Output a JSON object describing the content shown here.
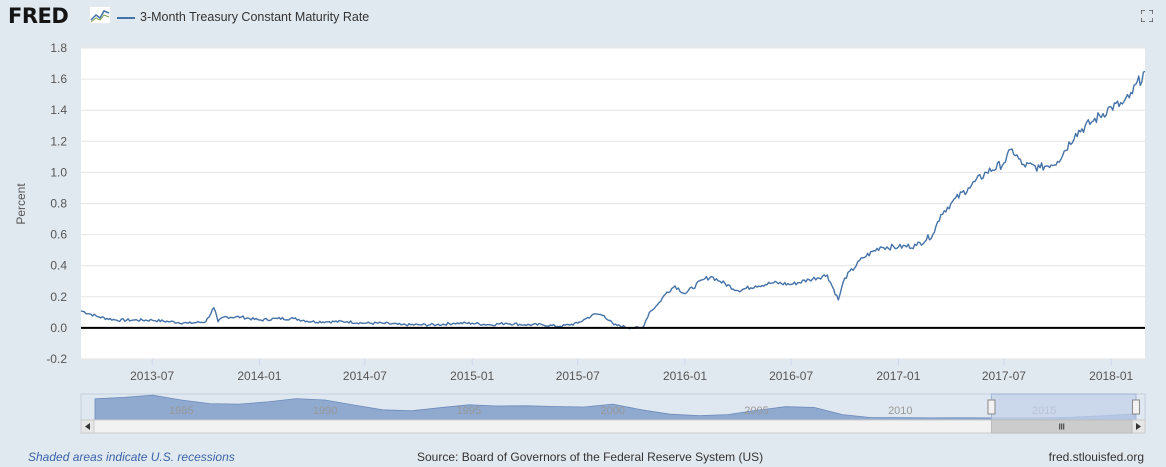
{
  "header": {
    "logo_text": "FRED",
    "legend_label": "3-Month Treasury Constant Maturity Rate"
  },
  "icons": {
    "logo": "fred-chart-logo-icon",
    "fullscreen": "fullscreen-icon",
    "scroll_left": "arrow-left-icon",
    "scroll_right": "arrow-right-icon",
    "scroll_grip": "grip-icon"
  },
  "colors": {
    "series": "#4572a7",
    "plot_bg": "#ffffff",
    "page_bg": "#e1e9f0",
    "navigator_fill": "#8fa9cf",
    "navigator_window": "#c4d2ea"
  },
  "chart_data": {
    "type": "line",
    "ylabel": "Percent",
    "ylim": [
      -0.2,
      1.8
    ],
    "yticks": [
      "-0.2",
      "0.0",
      "0.2",
      "0.4",
      "0.6",
      "0.8",
      "1.0",
      "1.2",
      "1.4",
      "1.6",
      "1.8"
    ],
    "xlim": [
      "2013-03-01",
      "2018-02-28"
    ],
    "xticks": [
      "2013-07",
      "2014-01",
      "2014-07",
      "2015-01",
      "2015-07",
      "2016-01",
      "2016-07",
      "2017-01",
      "2017-07",
      "2018-01"
    ],
    "zero_line": true,
    "grid": "horizontal",
    "series": [
      {
        "name": "3-Month Treasury Constant Maturity Rate",
        "points": [
          [
            "2013-03-01",
            0.11
          ],
          [
            "2013-04-01",
            0.07
          ],
          [
            "2013-05-01",
            0.05
          ],
          [
            "2013-06-01",
            0.05
          ],
          [
            "2013-07-01",
            0.05
          ],
          [
            "2013-08-01",
            0.04
          ],
          [
            "2013-09-01",
            0.03
          ],
          [
            "2013-10-01",
            0.04
          ],
          [
            "2013-10-15",
            0.13
          ],
          [
            "2013-10-22",
            0.04
          ],
          [
            "2013-11-01",
            0.07
          ],
          [
            "2013-12-01",
            0.07
          ],
          [
            "2014-01-01",
            0.05
          ],
          [
            "2014-02-01",
            0.06
          ],
          [
            "2014-03-01",
            0.06
          ],
          [
            "2014-04-01",
            0.04
          ],
          [
            "2014-05-01",
            0.04
          ],
          [
            "2014-06-01",
            0.04
          ],
          [
            "2014-07-01",
            0.03
          ],
          [
            "2014-08-01",
            0.03
          ],
          [
            "2014-09-01",
            0.02
          ],
          [
            "2014-10-01",
            0.02
          ],
          [
            "2014-11-01",
            0.02
          ],
          [
            "2014-12-01",
            0.03
          ],
          [
            "2015-01-01",
            0.03
          ],
          [
            "2015-02-01",
            0.02
          ],
          [
            "2015-03-01",
            0.03
          ],
          [
            "2015-04-01",
            0.02
          ],
          [
            "2015-05-01",
            0.02
          ],
          [
            "2015-06-01",
            0.01
          ],
          [
            "2015-07-01",
            0.03
          ],
          [
            "2015-07-15",
            0.06
          ],
          [
            "2015-08-01",
            0.09
          ],
          [
            "2015-08-15",
            0.08
          ],
          [
            "2015-09-01",
            0.02
          ],
          [
            "2015-10-01",
            0.0
          ],
          [
            "2015-10-20",
            0.0
          ],
          [
            "2015-11-01",
            0.1
          ],
          [
            "2015-11-15",
            0.15
          ],
          [
            "2015-12-01",
            0.23
          ],
          [
            "2015-12-15",
            0.27
          ],
          [
            "2016-01-01",
            0.22
          ],
          [
            "2016-02-01",
            0.31
          ],
          [
            "2016-02-15",
            0.33
          ],
          [
            "2016-03-01",
            0.3
          ],
          [
            "2016-04-01",
            0.24
          ],
          [
            "2016-05-01",
            0.27
          ],
          [
            "2016-06-01",
            0.29
          ],
          [
            "2016-07-01",
            0.28
          ],
          [
            "2016-08-01",
            0.31
          ],
          [
            "2016-09-01",
            0.34
          ],
          [
            "2016-09-20",
            0.18
          ],
          [
            "2016-10-01",
            0.32
          ],
          [
            "2016-11-01",
            0.45
          ],
          [
            "2016-12-01",
            0.52
          ],
          [
            "2017-01-01",
            0.52
          ],
          [
            "2017-02-01",
            0.53
          ],
          [
            "2017-03-01",
            0.6
          ],
          [
            "2017-03-15",
            0.73
          ],
          [
            "2017-04-01",
            0.8
          ],
          [
            "2017-05-01",
            0.9
          ],
          [
            "2017-06-01",
            1.0
          ],
          [
            "2017-07-01",
            1.06
          ],
          [
            "2017-07-15",
            1.15
          ],
          [
            "2017-08-01",
            1.05
          ],
          [
            "2017-09-01",
            1.03
          ],
          [
            "2017-10-01",
            1.07
          ],
          [
            "2017-11-01",
            1.25
          ],
          [
            "2017-12-01",
            1.33
          ],
          [
            "2018-01-01",
            1.42
          ],
          [
            "2018-01-20",
            1.44
          ],
          [
            "2018-02-01",
            1.48
          ],
          [
            "2018-02-28",
            1.65
          ]
        ]
      }
    ]
  },
  "navigator": {
    "year_labels": [
      "1985",
      "1990",
      "1995",
      "2000",
      "2005",
      "2010",
      "2015"
    ],
    "history": [
      [
        1982,
        8.0
      ],
      [
        1983,
        8.6
      ],
      [
        1984,
        9.5
      ],
      [
        1985,
        7.5
      ],
      [
        1986,
        6.0
      ],
      [
        1987,
        5.8
      ],
      [
        1988,
        6.7
      ],
      [
        1989,
        8.1
      ],
      [
        1990,
        7.5
      ],
      [
        1991,
        5.4
      ],
      [
        1992,
        3.4
      ],
      [
        1993,
        3.0
      ],
      [
        1994,
        4.3
      ],
      [
        1995,
        5.5
      ],
      [
        1996,
        5.0
      ],
      [
        1997,
        5.1
      ],
      [
        1998,
        4.8
      ],
      [
        1999,
        4.6
      ],
      [
        2000,
        5.8
      ],
      [
        2001,
        3.4
      ],
      [
        2002,
        1.6
      ],
      [
        2003,
        1.0
      ],
      [
        2004,
        1.4
      ],
      [
        2005,
        3.2
      ],
      [
        2006,
        4.7
      ],
      [
        2007,
        4.4
      ],
      [
        2008,
        1.4
      ],
      [
        2009,
        0.15
      ],
      [
        2010,
        0.14
      ],
      [
        2011,
        0.05
      ],
      [
        2012,
        0.09
      ],
      [
        2013,
        0.06
      ],
      [
        2014,
        0.03
      ],
      [
        2015,
        0.05
      ],
      [
        2016,
        0.32
      ],
      [
        2017,
        0.93
      ],
      [
        2018,
        1.6
      ]
    ],
    "range": [
      "2013-03-01",
      "2018-02-28"
    ]
  },
  "footer": {
    "recessions_note": "Shaded areas indicate U.S. recessions",
    "source": "Source: Board of Governors of the Federal Reserve System (US)",
    "site": "fred.stlouisfed.org"
  }
}
